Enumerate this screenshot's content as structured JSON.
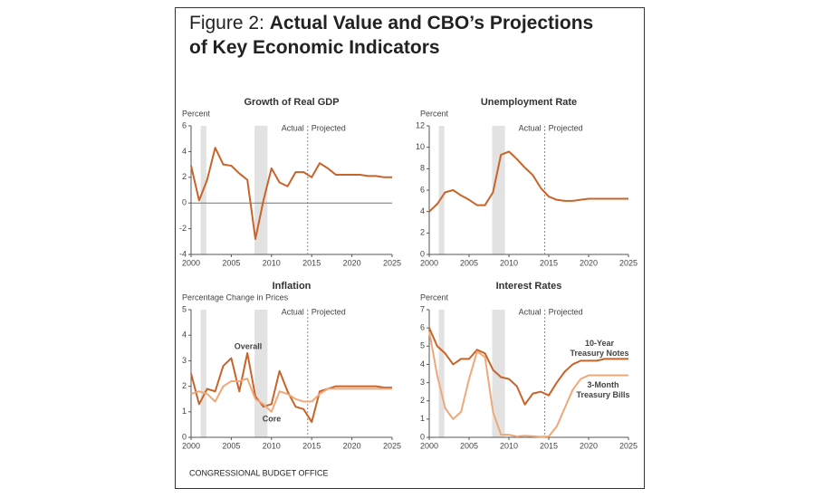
{
  "figure_label": "Figure 2:",
  "title": "Actual Value and CBO’s Projections of Key Economic Indicators",
  "source": "CONGRESSIONAL BUDGET OFFICE",
  "chart_data": [
    {
      "type": "line",
      "title": "Growth of Real GDP",
      "y_label": "Percent",
      "x": [
        2000,
        2001,
        2002,
        2003,
        2004,
        2005,
        2006,
        2007,
        2008,
        2009,
        2010,
        2011,
        2012,
        2013,
        2014,
        2015,
        2016,
        2017,
        2018,
        2019,
        2020,
        2021,
        2022,
        2023,
        2024,
        2025
      ],
      "series": [
        {
          "name": "Real GDP",
          "color": "#c8642a",
          "values": [
            2.9,
            0.2,
            1.8,
            4.3,
            3.0,
            2.9,
            2.3,
            1.8,
            -2.8,
            0.2,
            2.7,
            1.6,
            1.3,
            2.4,
            2.4,
            2.0,
            3.1,
            2.7,
            2.2,
            2.2,
            2.2,
            2.2,
            2.1,
            2.1,
            2.0,
            2.0
          ]
        }
      ],
      "xlim": [
        2000,
        2025
      ],
      "xticks": [
        2000,
        2005,
        2010,
        2015,
        2020,
        2025
      ],
      "ylim": [
        -4,
        6
      ],
      "yticks": [
        -4,
        -2,
        0,
        2,
        4,
        6
      ],
      "shaded_ranges": [
        [
          2001.2,
          2001.9
        ],
        [
          2007.9,
          2009.5
        ]
      ],
      "divider_x": 2014.5,
      "annotations": [
        "Actual",
        "Projected"
      ]
    },
    {
      "type": "line",
      "title": "Unemployment Rate",
      "y_label": "Percent",
      "x": [
        2000,
        2001,
        2002,
        2003,
        2004,
        2005,
        2006,
        2007,
        2008,
        2009,
        2010,
        2011,
        2012,
        2013,
        2014,
        2015,
        2016,
        2017,
        2018,
        2019,
        2020,
        2021,
        2022,
        2023,
        2024,
        2025
      ],
      "series": [
        {
          "name": "Unemployment Rate",
          "color": "#c8642a",
          "values": [
            4.0,
            4.7,
            5.8,
            6.0,
            5.5,
            5.1,
            4.6,
            4.6,
            5.8,
            9.3,
            9.6,
            8.9,
            8.1,
            7.4,
            6.2,
            5.4,
            5.1,
            5.0,
            5.0,
            5.1,
            5.2,
            5.2,
            5.2,
            5.2,
            5.2,
            5.2
          ]
        }
      ],
      "xlim": [
        2000,
        2025
      ],
      "xticks": [
        2000,
        2005,
        2010,
        2015,
        2020,
        2025
      ],
      "ylim": [
        0,
        12
      ],
      "yticks": [
        0,
        2,
        4,
        6,
        8,
        10,
        12
      ],
      "shaded_ranges": [
        [
          2001.2,
          2001.9
        ],
        [
          2007.9,
          2009.5
        ]
      ],
      "divider_x": 2014.5,
      "annotations": [
        "Actual",
        "Projected"
      ]
    },
    {
      "type": "line",
      "title": "Inflation",
      "y_label": "Percentage Change in Prices",
      "x": [
        2000,
        2001,
        2002,
        2003,
        2004,
        2005,
        2006,
        2007,
        2008,
        2009,
        2010,
        2011,
        2012,
        2013,
        2014,
        2015,
        2016,
        2017,
        2018,
        2019,
        2020,
        2021,
        2022,
        2023,
        2024,
        2025
      ],
      "series": [
        {
          "name": "Overall",
          "color": "#c8642a",
          "values": [
            2.5,
            1.3,
            1.9,
            1.8,
            2.8,
            3.1,
            1.8,
            3.3,
            1.6,
            1.2,
            1.3,
            2.6,
            1.8,
            1.2,
            1.1,
            0.6,
            1.8,
            1.9,
            2.0,
            2.0,
            2.0,
            2.0,
            2.0,
            2.0,
            1.95,
            1.95
          ]
        },
        {
          "name": "Core",
          "color": "#f0a878",
          "values": [
            1.7,
            1.8,
            1.7,
            1.4,
            2.0,
            2.2,
            2.2,
            2.3,
            1.5,
            1.3,
            1.0,
            1.8,
            1.7,
            1.5,
            1.4,
            1.4,
            1.7,
            1.9,
            1.9,
            1.9,
            1.9,
            1.9,
            1.9,
            1.9,
            1.9,
            1.9
          ]
        }
      ],
      "xlim": [
        2000,
        2025
      ],
      "xticks": [
        2000,
        2005,
        2010,
        2015,
        2020,
        2025
      ],
      "ylim": [
        0,
        5
      ],
      "yticks": [
        0,
        1,
        2,
        3,
        4,
        5
      ],
      "shaded_ranges": [
        [
          2001.2,
          2001.9
        ],
        [
          2007.9,
          2009.5
        ]
      ],
      "divider_x": 2014.5,
      "annotations": [
        "Actual",
        "Projected"
      ]
    },
    {
      "type": "line",
      "title": "Interest Rates",
      "y_label": "Percent",
      "x": [
        2000,
        2001,
        2002,
        2003,
        2004,
        2005,
        2006,
        2007,
        2008,
        2009,
        2010,
        2011,
        2012,
        2013,
        2014,
        2015,
        2016,
        2017,
        2018,
        2019,
        2020,
        2021,
        2022,
        2023,
        2024,
        2025
      ],
      "series": [
        {
          "name": "10-Year Treasury Notes",
          "color": "#c8642a",
          "values": [
            6.0,
            5.0,
            4.6,
            4.0,
            4.3,
            4.3,
            4.8,
            4.6,
            3.7,
            3.3,
            3.2,
            2.8,
            1.8,
            2.4,
            2.5,
            2.3,
            3.0,
            3.6,
            4.0,
            4.2,
            4.2,
            4.2,
            4.3,
            4.3,
            4.3,
            4.3
          ]
        },
        {
          "name": "3-Month Treasury Bills",
          "color": "#f0a878",
          "values": [
            5.8,
            3.4,
            1.6,
            1.0,
            1.4,
            3.2,
            4.7,
            4.4,
            1.4,
            0.15,
            0.14,
            0.05,
            0.09,
            0.06,
            0.03,
            0.05,
            0.6,
            1.6,
            2.6,
            3.2,
            3.4,
            3.4,
            3.4,
            3.4,
            3.4,
            3.4
          ]
        }
      ],
      "xlim": [
        2000,
        2025
      ],
      "xticks": [
        2000,
        2005,
        2010,
        2015,
        2020,
        2025
      ],
      "ylim": [
        0,
        7
      ],
      "yticks": [
        0,
        1,
        2,
        3,
        4,
        5,
        6,
        7
      ],
      "shaded_ranges": [
        [
          2001.2,
          2001.9
        ],
        [
          2007.9,
          2009.5
        ]
      ],
      "divider_x": 2014.5,
      "annotations": [
        "Actual",
        "Projected"
      ]
    }
  ]
}
